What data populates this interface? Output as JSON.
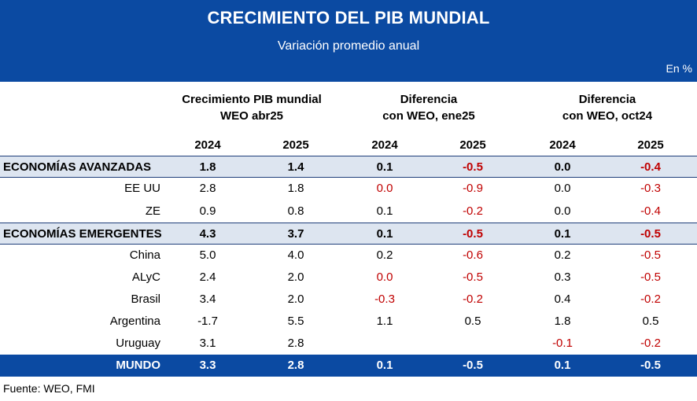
{
  "header": {
    "title": "CRECIMIENTO DEL PIB MUNDIAL",
    "subtitle": "Variación promedio anual",
    "unit": "En %"
  },
  "column_groups": [
    {
      "line1": "Crecimiento PIB mundial",
      "line2": "WEO abr25"
    },
    {
      "line1": "Diferencia",
      "line2": "con WEO, ene25"
    },
    {
      "line1": "Diferencia",
      "line2": "con WEO, oct24"
    }
  ],
  "years": [
    "2024",
    "2025",
    "2024",
    "2025",
    "2024",
    "2025"
  ],
  "rows": [
    {
      "label": "ECONOMÍAS AVANZADAS",
      "style": "agg",
      "values": [
        "1.8",
        "1.4",
        "0.1",
        "-0.5",
        "0.0",
        "-0.4"
      ],
      "red": [
        false,
        false,
        false,
        true,
        false,
        true
      ]
    },
    {
      "label": "EE UU",
      "style": "plain",
      "values": [
        "2.8",
        "1.8",
        "0.0",
        "-0.9",
        "0.0",
        "-0.3"
      ],
      "red": [
        false,
        false,
        true,
        true,
        false,
        true
      ]
    },
    {
      "label": "ZE",
      "style": "plain",
      "values": [
        "0.9",
        "0.8",
        "0.1",
        "-0.2",
        "0.0",
        "-0.4"
      ],
      "red": [
        false,
        false,
        false,
        true,
        false,
        true
      ]
    },
    {
      "label": "ECONOMÍAS EMERGENTES",
      "style": "agg",
      "values": [
        "4.3",
        "3.7",
        "0.1",
        "-0.5",
        "0.1",
        "-0.5"
      ],
      "red": [
        false,
        false,
        false,
        true,
        false,
        true
      ]
    },
    {
      "label": "China",
      "style": "plain",
      "values": [
        "5.0",
        "4.0",
        "0.2",
        "-0.6",
        "0.2",
        "-0.5"
      ],
      "red": [
        false,
        false,
        false,
        true,
        false,
        true
      ]
    },
    {
      "label": "ALyC",
      "style": "plain",
      "values": [
        "2.4",
        "2.0",
        "0.0",
        "-0.5",
        "0.3",
        "-0.5"
      ],
      "red": [
        false,
        false,
        true,
        true,
        false,
        true
      ]
    },
    {
      "label": "Brasil",
      "style": "plain",
      "values": [
        "3.4",
        "2.0",
        "-0.3",
        "-0.2",
        "0.4",
        "-0.2"
      ],
      "red": [
        false,
        false,
        true,
        true,
        false,
        true
      ]
    },
    {
      "label": "Argentina",
      "style": "plain",
      "values": [
        "-1.7",
        "5.5",
        "1.1",
        "0.5",
        "1.8",
        "0.5"
      ],
      "red": [
        false,
        false,
        false,
        false,
        false,
        false
      ]
    },
    {
      "label": "Uruguay",
      "style": "plain",
      "values": [
        "3.1",
        "2.8",
        "",
        "",
        "-0.1",
        "-0.2"
      ],
      "red": [
        false,
        false,
        false,
        false,
        true,
        true
      ]
    },
    {
      "label": "MUNDO",
      "style": "total",
      "values": [
        "3.3",
        "2.8",
        "0.1",
        "-0.5",
        "0.1",
        "-0.5"
      ],
      "red": [
        false,
        false,
        false,
        false,
        false,
        false
      ]
    }
  ],
  "footer": "Fuente: WEO, FMI"
}
